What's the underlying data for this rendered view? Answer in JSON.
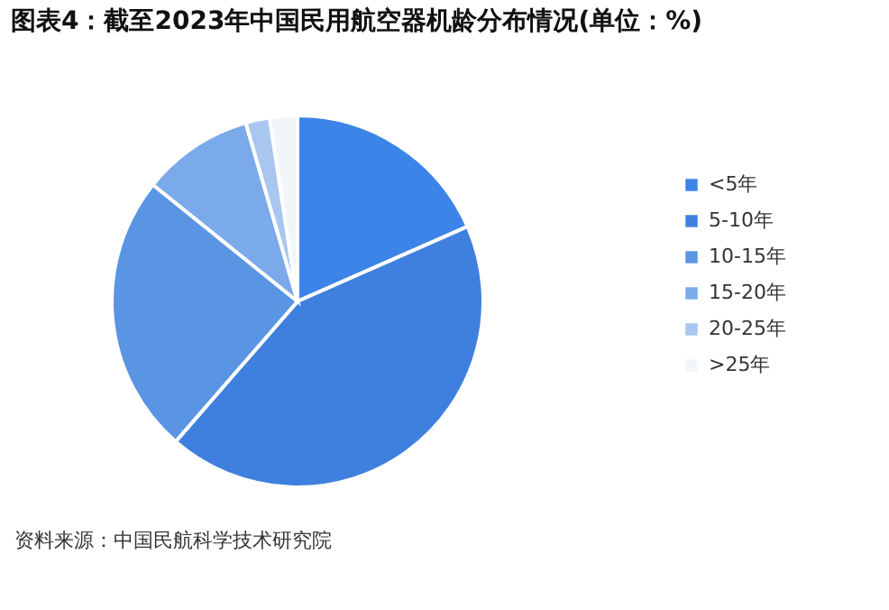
{
  "chart_data": {
    "type": "pie",
    "title": "图表4：截至2023年中国民用航空器机龄分布情况(单位：%)",
    "categories": [
      "<5年",
      "5-10年",
      "10-15年",
      "15-20年",
      "20-25年",
      ">25年"
    ],
    "values": [
      18.4,
      43.0,
      24.4,
      9.7,
      2.1,
      2.4
    ],
    "colors": [
      "#3c84e8",
      "#3f80de",
      "#5a95e4",
      "#7aaae9",
      "#a9c6f0",
      "#f2f5fa"
    ],
    "legend": "right",
    "annotations": [
      "资料来源：中国民航科学技术研究院"
    ]
  }
}
